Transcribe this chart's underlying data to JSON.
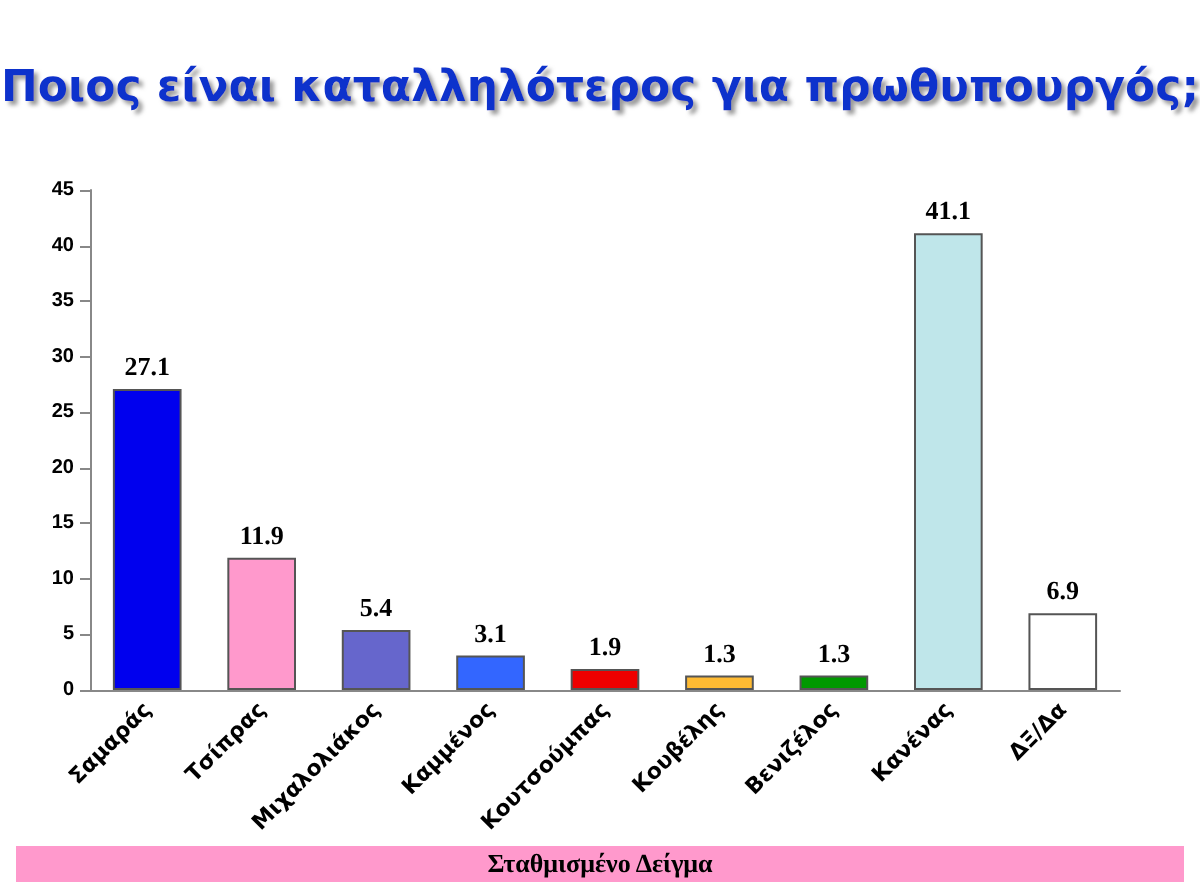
{
  "chart_data": {
    "type": "bar",
    "title": "Ποιος είναι καταλληλότερος για πρωθυπουργός;",
    "categories": [
      "Σαμαράς",
      "Τσίπρας",
      "Μιχαλολιάκος",
      "Καμμένος",
      "Κουτσούμπας",
      "Κουβέλης",
      "Βενιζέλος",
      "Κανένας",
      "ΔΞ/Δα"
    ],
    "values": [
      27.1,
      11.9,
      5.4,
      3.1,
      1.9,
      1.3,
      1.3,
      41.1,
      6.9
    ],
    "colors": [
      "#0000ee",
      "#ff99cc",
      "#6666cc",
      "#3366ff",
      "#ee0000",
      "#ffbb33",
      "#009900",
      "#bfe6ea",
      "#ffffff"
    ],
    "ylim": [
      0,
      45
    ],
    "yticks": [
      0,
      5,
      10,
      15,
      20,
      25,
      30,
      35,
      40,
      45
    ],
    "grid": false,
    "data_labels": true,
    "annotations": [
      "Σταθμισμένο Δείγμα"
    ]
  }
}
